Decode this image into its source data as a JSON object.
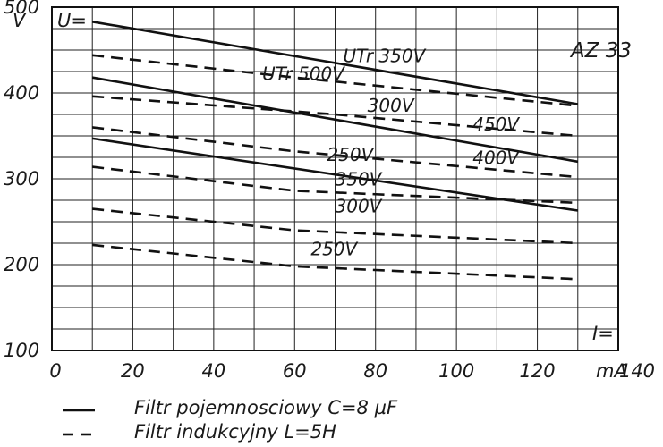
{
  "chart_data": {
    "type": "line",
    "title": "AZ 33",
    "ylabel": "V",
    "ylabel2": "U=",
    "xlabel": "I=",
    "xunit": "mA",
    "xlim": [
      0,
      140
    ],
    "ylim": [
      100,
      500
    ],
    "x_ticks": [
      0,
      20,
      40,
      60,
      80,
      100,
      120,
      140
    ],
    "y_ticks": [
      100,
      200,
      300,
      400,
      500
    ],
    "grid": true,
    "series": [
      {
        "name": "UTr 350V",
        "style": "solid",
        "x": [
          10,
          130
        ],
        "values": [
          483,
          387
        ]
      },
      {
        "name": "300V",
        "style": "solid",
        "x": [
          10,
          130
        ],
        "values": [
          418,
          320
        ]
      },
      {
        "name": "250V",
        "style": "solid",
        "x": [
          10,
          130
        ],
        "values": [
          347,
          263
        ]
      },
      {
        "name": "UTr 500V",
        "style": "dashed",
        "x": [
          10,
          60,
          130
        ],
        "values": [
          444,
          418,
          385
        ]
      },
      {
        "name": "450V",
        "style": "dashed",
        "x": [
          10,
          70,
          130
        ],
        "values": [
          396,
          375,
          350
        ]
      },
      {
        "name": "400V",
        "style": "dashed",
        "x": [
          10,
          60,
          130
        ],
        "values": [
          360,
          332,
          302
        ]
      },
      {
        "name": "350V",
        "style": "dashed",
        "x": [
          10,
          60,
          130
        ],
        "values": [
          314,
          286,
          272
        ]
      },
      {
        "name": "300V",
        "style": "dashed",
        "x": [
          10,
          60,
          130
        ],
        "values": [
          265,
          240,
          225
        ]
      },
      {
        "name": "250V",
        "style": "dashed",
        "x": [
          10,
          60,
          130
        ],
        "values": [
          223,
          198,
          183
        ]
      }
    ],
    "labels": [
      {
        "text": "UTr 350V",
        "x": 72,
        "y": 436
      },
      {
        "text": "UTr 500V",
        "x": 52,
        "y": 415
      },
      {
        "text": "300V",
        "x": 78,
        "y": 378
      },
      {
        "text": "450V",
        "x": 104,
        "y": 356
      },
      {
        "text": "250V",
        "x": 68,
        "y": 321
      },
      {
        "text": "400V",
        "x": 104,
        "y": 317
      },
      {
        "text": "350V",
        "x": 70,
        "y": 292
      },
      {
        "text": "300V",
        "x": 70,
        "y": 261
      },
      {
        "text": "250V",
        "x": 64,
        "y": 211
      }
    ],
    "legend": [
      {
        "style": "solid",
        "text": "Filtr pojemnosciowy  C=8 µF"
      },
      {
        "style": "dashed",
        "text": "Filtr indukcyjny  L=5H"
      }
    ],
    "legend_position": "bottom-left"
  }
}
